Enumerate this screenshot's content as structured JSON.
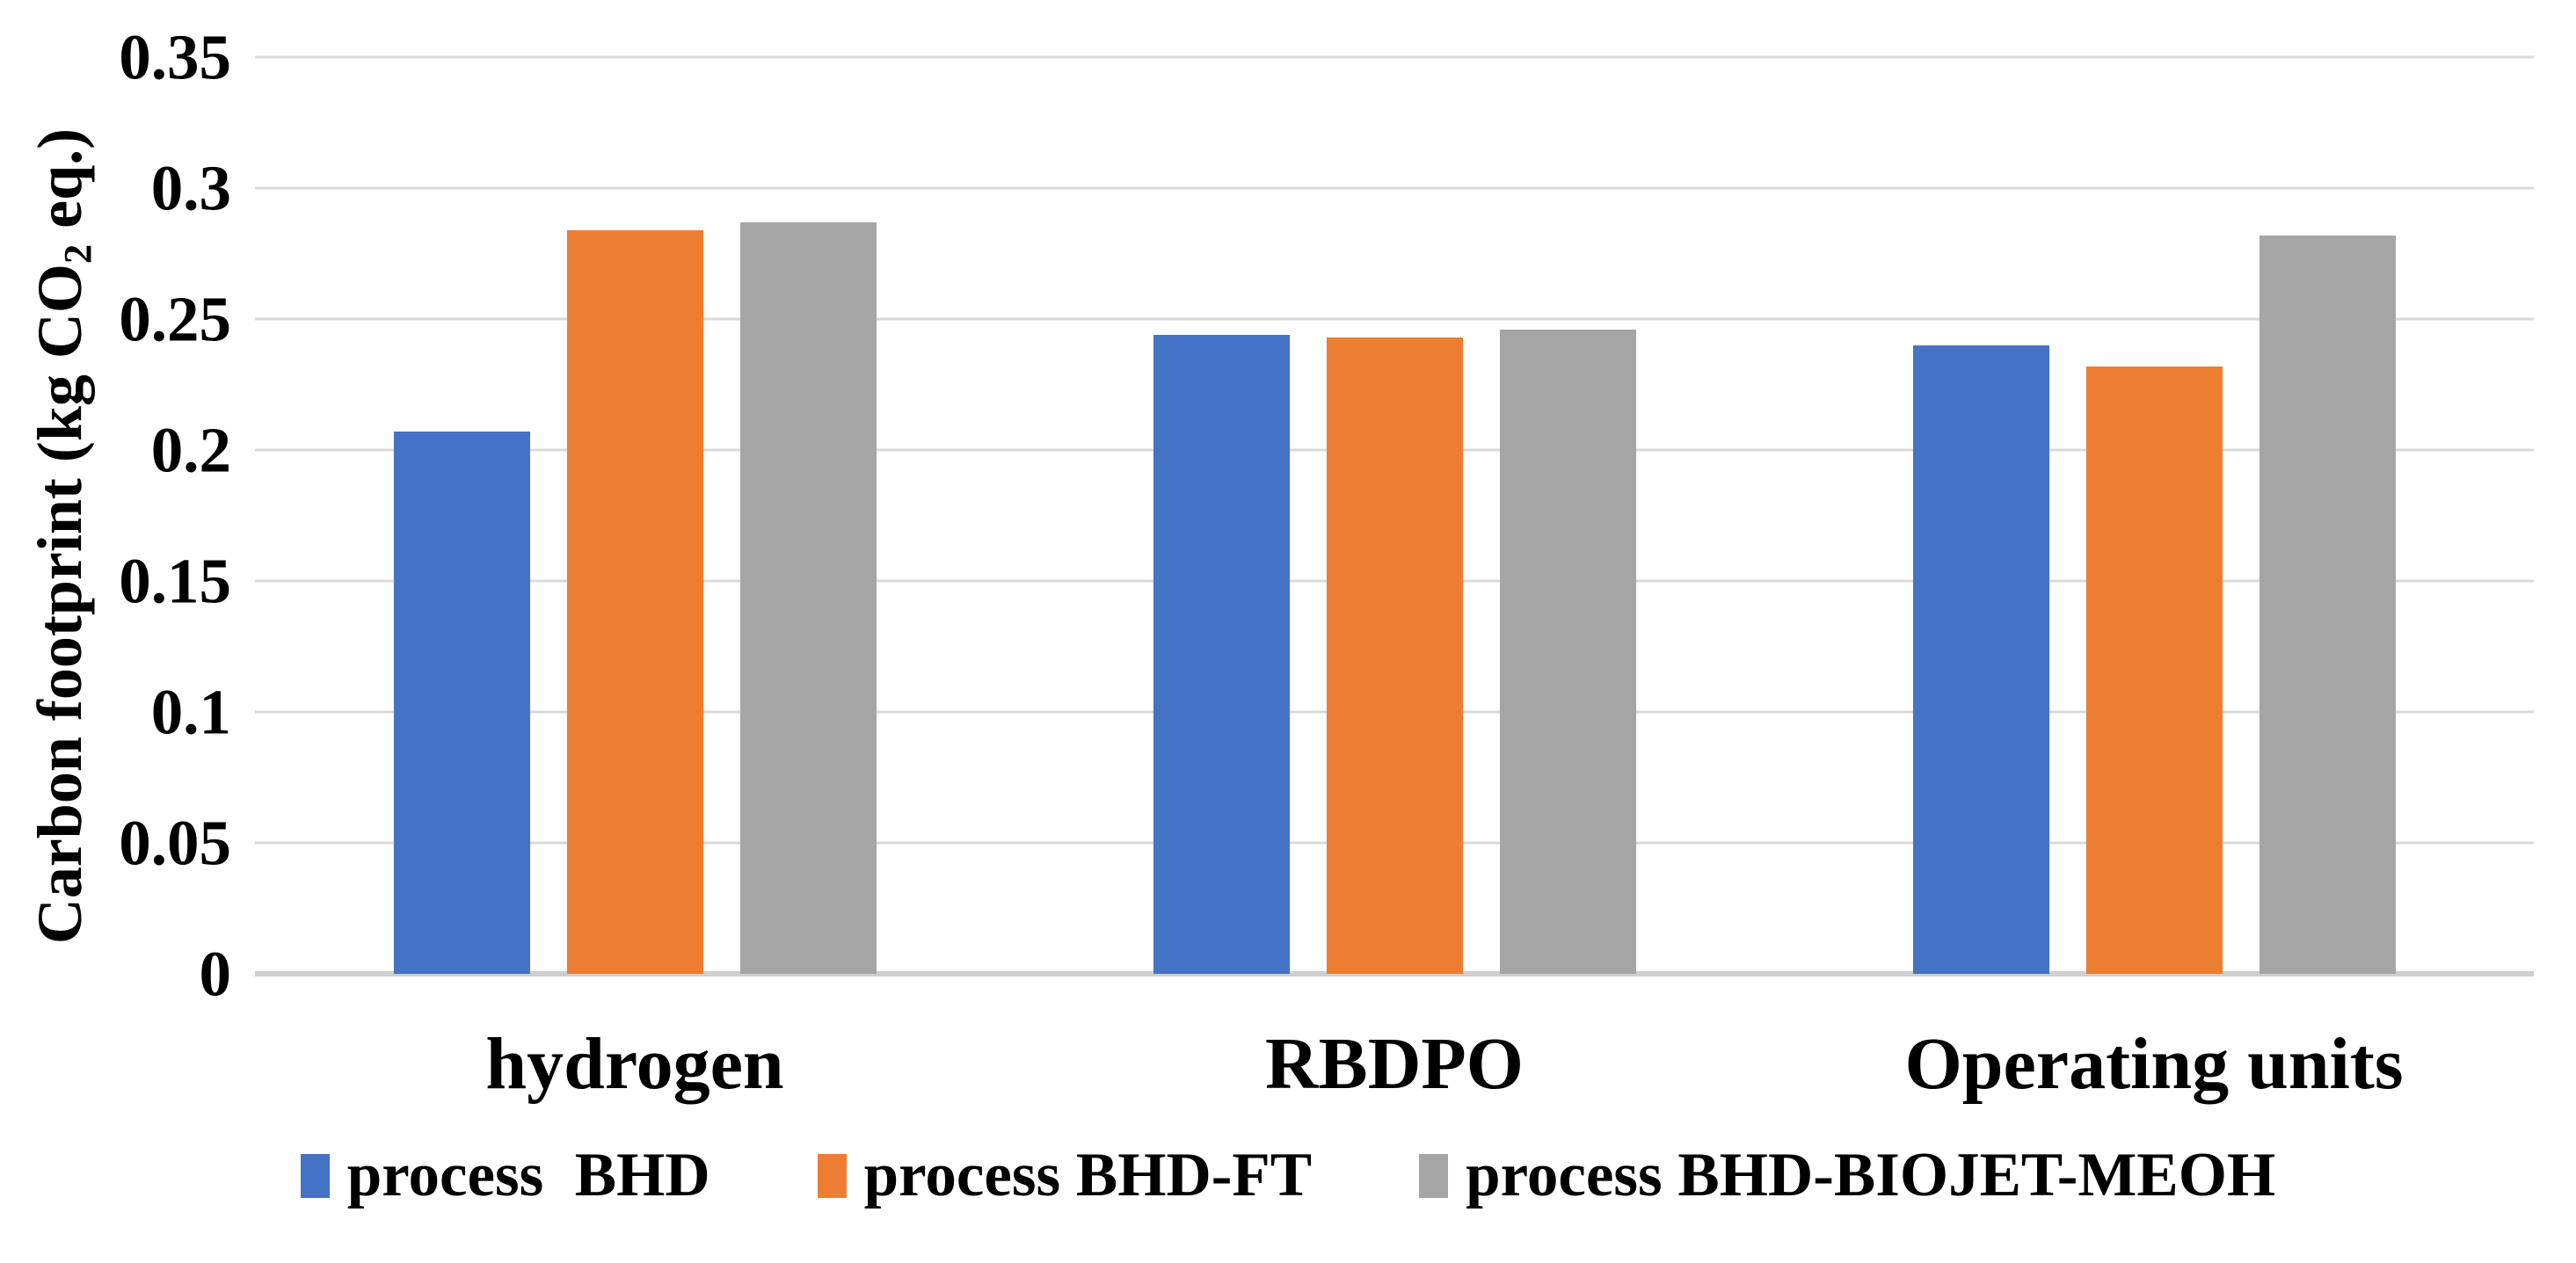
{
  "chart_data": {
    "type": "bar",
    "title": "",
    "ylabel": "Carbon footprint (kg CO2 eq.)",
    "ylabel_parts": {
      "pre": "Carbon footprint (kg CO",
      "sub": "2",
      "post": " eq.)"
    },
    "categories": [
      "hydrogen",
      "RBDPO",
      "Operating units"
    ],
    "series": [
      {
        "name": "process  BHD",
        "color": "#4472C4",
        "values": [
          0.207,
          0.244,
          0.24
        ]
      },
      {
        "name": "process BHD-FT",
        "color": "#ED7D31",
        "values": [
          0.284,
          0.243,
          0.232
        ]
      },
      {
        "name": "process BHD-BIOJET-MEOH",
        "color": "#A5A5A5",
        "values": [
          0.287,
          0.246,
          0.282
        ]
      }
    ],
    "ylim": [
      0,
      0.35
    ],
    "ytick_step": 0.05,
    "yticks": [
      "0.35",
      "0.3",
      "0.25",
      "0.2",
      "0.15",
      "0.1",
      "0.05",
      "0"
    ],
    "grid": "horizontal",
    "legend_position": "bottom",
    "colors": {
      "gridline": "#D9D9D9",
      "axis_line": "#CFCFCF",
      "text": "#000000",
      "background": "#FFFFFF"
    }
  }
}
